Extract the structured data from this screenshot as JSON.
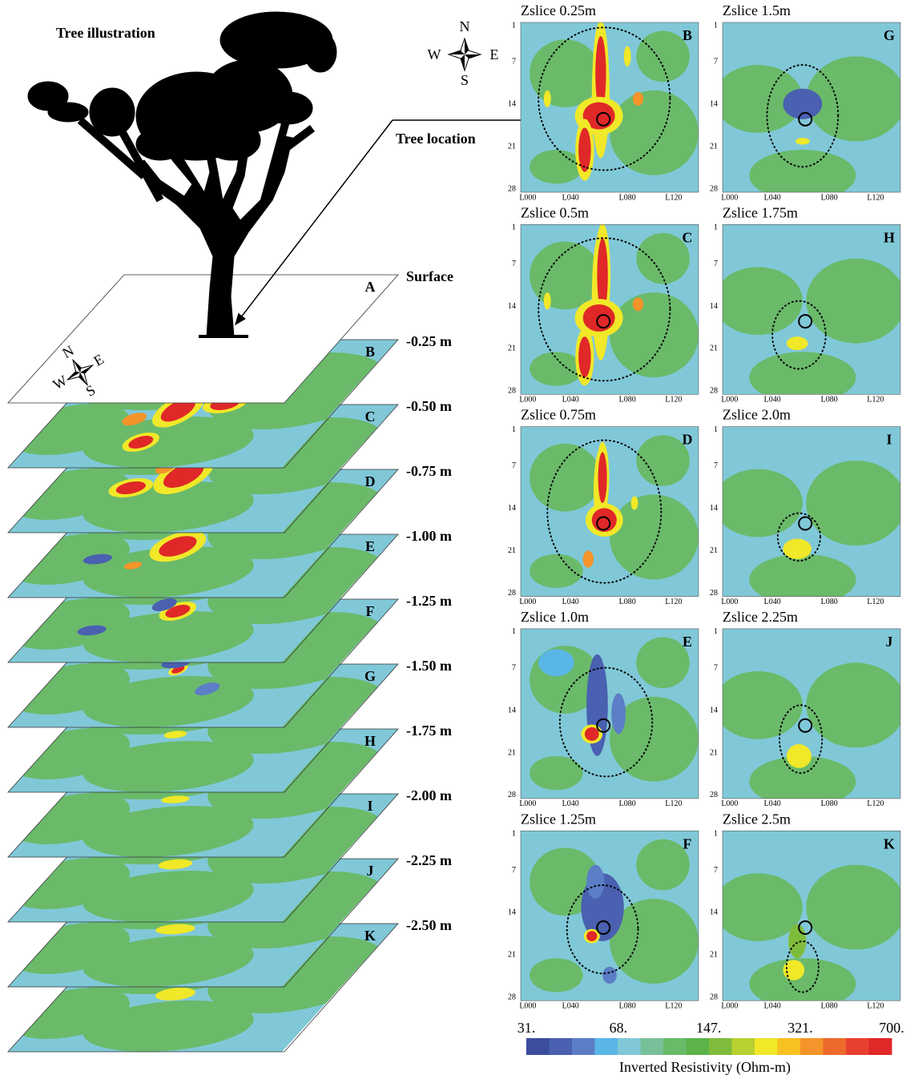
{
  "tree_title": "Tree illustration",
  "tree_location": "Tree location",
  "compass": {
    "n": "N",
    "s": "S",
    "w": "W",
    "e": "E"
  },
  "stack": {
    "layers": [
      {
        "letter": "A",
        "depth": "Surface"
      },
      {
        "letter": "B",
        "depth": "-0.25 m"
      },
      {
        "letter": "C",
        "depth": "-0.50 m"
      },
      {
        "letter": "D",
        "depth": "-0.75 m"
      },
      {
        "letter": "E",
        "depth": "-1.00 m"
      },
      {
        "letter": "F",
        "depth": "-1.25 m"
      },
      {
        "letter": "G",
        "depth": "-1.50 m"
      },
      {
        "letter": "H",
        "depth": "-1.75 m"
      },
      {
        "letter": "I",
        "depth": "-2.00 m"
      },
      {
        "letter": "J",
        "depth": "-2.25 m"
      },
      {
        "letter": "K",
        "depth": "-2.50 m"
      }
    ]
  },
  "panels": [
    {
      "title": "Zslice 0.25m",
      "letter": "B"
    },
    {
      "title": "Zslice 0.5m",
      "letter": "C"
    },
    {
      "title": "Zslice 0.75m",
      "letter": "D"
    },
    {
      "title": "Zslice 1.0m",
      "letter": "E"
    },
    {
      "title": "Zslice 1.25m",
      "letter": "F"
    },
    {
      "title": "Zslice 1.5m",
      "letter": "G"
    },
    {
      "title": "Zslice 1.75m",
      "letter": "H"
    },
    {
      "title": "Zslice 2.0m",
      "letter": "I"
    },
    {
      "title": "Zslice 2.25m",
      "letter": "J"
    },
    {
      "title": "Zslice 2.5m",
      "letter": "K"
    }
  ],
  "panel_axes": {
    "yticks": [
      "1",
      "7",
      "14",
      "21",
      "28"
    ],
    "xticks": [
      "L000",
      "L040",
      "L080",
      "L120"
    ]
  },
  "colorbar": {
    "label": "Inverted Resistivity (Ohm-m)",
    "log_scale": true,
    "range": [
      31,
      700
    ],
    "ticks": [
      {
        "value": 31,
        "label": "31."
      },
      {
        "value": 68,
        "label": "68."
      },
      {
        "value": 147,
        "label": "147."
      },
      {
        "value": 321,
        "label": "321."
      },
      {
        "value": 700,
        "label": "700."
      }
    ],
    "colors": [
      "#3c4d9e",
      "#4a60b0",
      "#5b7ec6",
      "#5bb6e8",
      "#80c8d8",
      "#78c09a",
      "#6aba6a",
      "#5cb44a",
      "#80bc3c",
      "#b8d030",
      "#f0e828",
      "#f8c020",
      "#f4942a",
      "#ec6a2a",
      "#e84030",
      "#e02828"
    ]
  }
}
